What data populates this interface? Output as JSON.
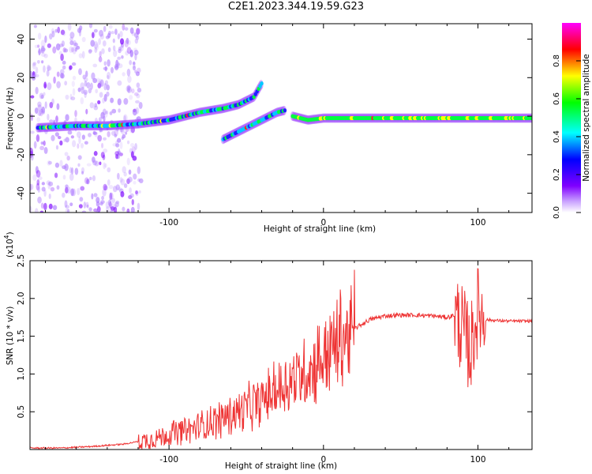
{
  "title": "C2E1.2023.344.19.59.G23",
  "chart_data": [
    {
      "type": "heatmap",
      "xlabel": "Height of straight line (km)",
      "ylabel": "Frequency (Hz)",
      "xlim": [
        -190,
        135
      ],
      "ylim": [
        -50,
        48
      ],
      "xticks": [
        -100,
        0,
        100
      ],
      "xtick_labels": [
        "-100",
        "0",
        "100"
      ],
      "yticks": [
        -40,
        -20,
        0,
        20,
        40
      ],
      "ytick_labels": [
        "-40",
        "-20",
        "0",
        "20",
        "40"
      ],
      "colorbar": {
        "label": "Normalized spectral amplitude",
        "range": [
          0,
          1
        ],
        "ticks": [
          0.0,
          0.2,
          0.4,
          0.6,
          0.8
        ],
        "tick_labels": [
          "0.0",
          "0.2",
          "0.4",
          "0.6",
          "0.8"
        ],
        "colors": [
          "#ff00ff",
          "#ff0000",
          "#ffff00",
          "#00ff00",
          "#00ffff",
          "#0000ff",
          "#8000ff",
          "#ffffff"
        ]
      },
      "series": [
        {
          "points": [
            [
              -185,
              -6
            ],
            [
              -160,
              -5
            ],
            [
              -140,
              -5
            ],
            [
              -120,
              -4
            ],
            [
              -100,
              -2
            ],
            [
              -80,
              2
            ],
            [
              -65,
              4
            ],
            [
              -55,
              6
            ],
            [
              -45,
              10
            ],
            [
              -40,
              17
            ]
          ]
        },
        {
          "points": [
            [
              -65,
              -12
            ],
            [
              -55,
              -8
            ],
            [
              -45,
              -4
            ],
            [
              -35,
              0
            ],
            [
              -30,
              2
            ],
            [
              -25,
              3
            ]
          ]
        },
        {
          "points": [
            [
              -20,
              0
            ],
            [
              -10,
              -2
            ],
            [
              0,
              -1
            ],
            [
              20,
              -1
            ],
            [
              60,
              -1
            ],
            [
              90,
              -1
            ],
            [
              110,
              -1
            ],
            [
              135,
              -1
            ]
          ]
        }
      ]
    },
    {
      "type": "line",
      "xlabel": "Height of straight line (km)",
      "ylabel": "SNR (10 * v/v)",
      "yunit_label": "(x10",
      "yunit_exp": "4",
      "yunit_close": ")",
      "xlim": [
        -190,
        135
      ],
      "ylim": [
        0,
        2.5
      ],
      "xticks": [
        -100,
        0,
        100
      ],
      "xtick_labels": [
        "-100",
        "0",
        "100"
      ],
      "yticks": [
        0.5,
        1.0,
        1.5,
        2.0,
        2.5
      ],
      "ytick_labels": [
        "0.5",
        "1.0",
        "1.5",
        "2.0",
        "2.5"
      ],
      "color": "#ee3333",
      "x": [
        -190,
        -170,
        -150,
        -130,
        -110,
        -100,
        -90,
        -80,
        -70,
        -60,
        -50,
        -40,
        -30,
        -20,
        -15,
        -10,
        -5,
        0,
        10,
        20,
        30,
        40,
        50,
        60,
        70,
        80,
        85,
        90,
        95,
        100,
        105,
        110,
        120,
        135
      ],
      "y": [
        0.02,
        0.02,
        0.04,
        0.07,
        0.14,
        0.2,
        0.25,
        0.3,
        0.38,
        0.46,
        0.55,
        0.65,
        0.78,
        0.9,
        1.0,
        1.05,
        1.12,
        1.25,
        1.45,
        1.6,
        1.72,
        1.77,
        1.78,
        1.78,
        1.77,
        1.75,
        1.78,
        1.6,
        1.3,
        1.85,
        1.72,
        1.71,
        1.7,
        1.7
      ]
    }
  ]
}
